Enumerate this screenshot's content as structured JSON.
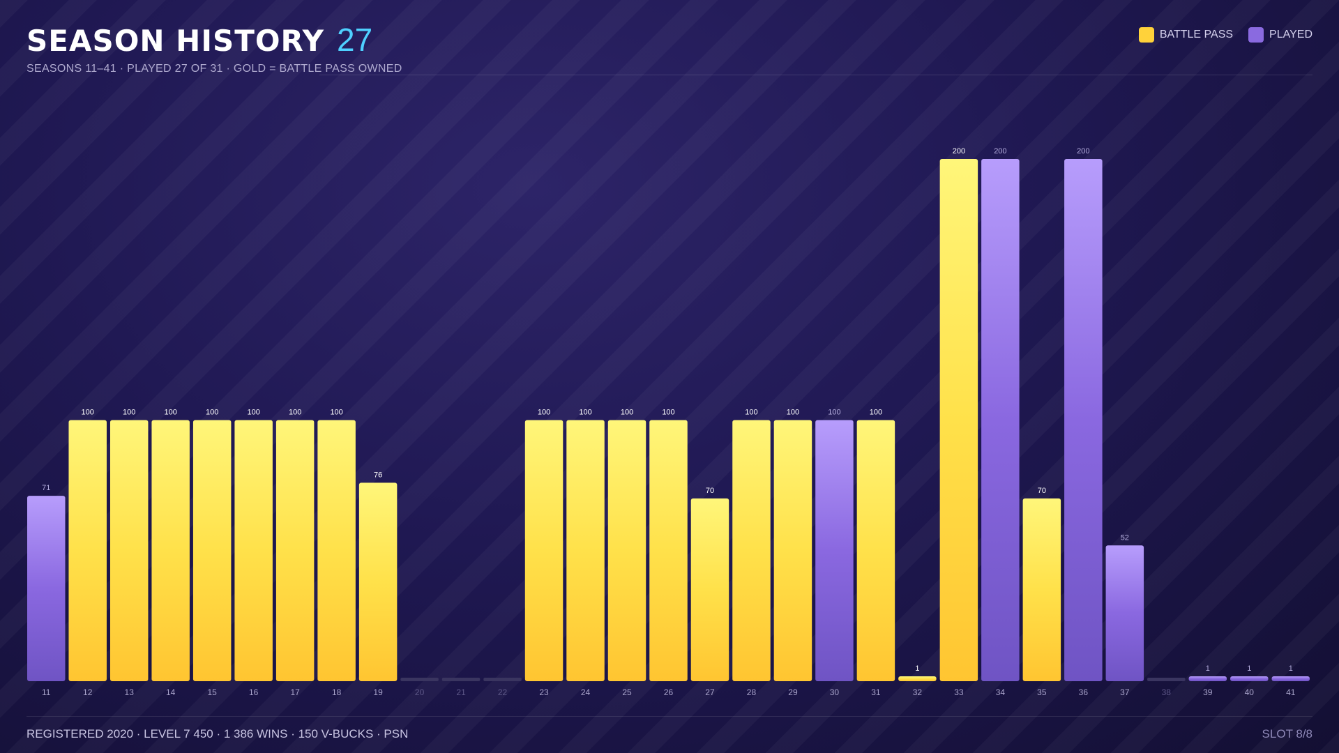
{
  "header": {
    "title": "SEASON HISTORY",
    "count": "27",
    "subtitle": "SEASONS 11–41 · PLAYED 27 OF 31 · GOLD = BATTLE PASS OWNED"
  },
  "legend": {
    "battle_pass_label": "BATTLE PASS",
    "played_label": "PLAYED"
  },
  "colors": {
    "battle_pass": "#ffd23a",
    "played": "#8a6ae0",
    "not_played": "#3a3560",
    "accent": "#4fd0ff"
  },
  "chart_data": {
    "type": "bar",
    "title": "SEASON HISTORY",
    "xlabel": "",
    "ylabel": "",
    "ylim": [
      0,
      200
    ],
    "grid": false,
    "legend_position": "top-right",
    "categories": [
      "11",
      "12",
      "13",
      "14",
      "15",
      "16",
      "17",
      "18",
      "19",
      "20",
      "21",
      "22",
      "23",
      "24",
      "25",
      "26",
      "27",
      "28",
      "29",
      "30",
      "31",
      "32",
      "33",
      "34",
      "35",
      "36",
      "37",
      "38",
      "39",
      "40",
      "41"
    ],
    "values": [
      71,
      100,
      100,
      100,
      100,
      100,
      100,
      100,
      76,
      0,
      0,
      0,
      100,
      100,
      100,
      100,
      70,
      100,
      100,
      100,
      100,
      1,
      200,
      200,
      70,
      200,
      52,
      0,
      1,
      1,
      1
    ],
    "status": [
      "played",
      "bp",
      "bp",
      "bp",
      "bp",
      "bp",
      "bp",
      "bp",
      "bp",
      "none",
      "none",
      "none",
      "bp",
      "bp",
      "bp",
      "bp",
      "bp",
      "bp",
      "bp",
      "played",
      "bp",
      "bp",
      "bp",
      "played",
      "bp",
      "played",
      "played",
      "none",
      "played",
      "played",
      "played"
    ],
    "series": [
      {
        "name": "BATTLE PASS"
      },
      {
        "name": "PLAYED"
      }
    ]
  },
  "footer": {
    "left": "REGISTERED 2020 · LEVEL 7 450 · 1 386 WINS · 150 V-BUCKS · PSN",
    "right": "SLOT 8/8"
  }
}
